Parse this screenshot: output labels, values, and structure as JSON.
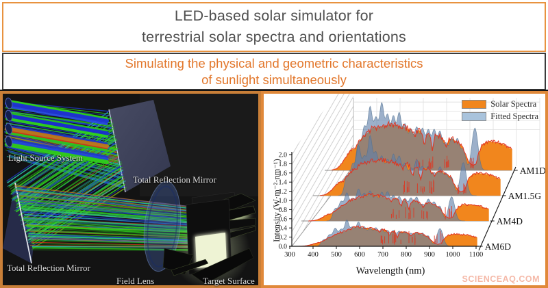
{
  "banners": {
    "title_line1": "LED-based solar simulator for",
    "title_line2": "terrestrial solar spectra and orientations",
    "subtitle_line1": "Simulating the physical and geometric characteristics",
    "subtitle_line2": "of sunlight simultaneously"
  },
  "colors": {
    "title_text": "#4f4f4f",
    "subtitle_text": "#e2762a",
    "banner1_border": "#e8923f",
    "banner2_border": "#3b3b3b",
    "panel_border_left": "#c97f38",
    "panel_border_right": "#e0893a",
    "solar_fill": "#f1861d",
    "fitted_overlay": "rgba(95,127,169,0.62)",
    "fitted_swatch": "#a9c3dc",
    "red_line": "#e0341f",
    "ray_green": "#2fd41c",
    "ray_blue": "#2140e0",
    "ray_teal": "#2cc4ae",
    "ray_orange": "#c0761c",
    "ray_red": "#d03418",
    "mirror_fill": "#3f4258",
    "watermark_color": "#f5b9a8"
  },
  "ray_diagram": {
    "labels": {
      "light_source": "Light Source System",
      "mirror_top": "Total Reflection Mirror",
      "mirror_bottom": "Total Reflection Mirror",
      "field_lens": "Field Lens",
      "target_surface": "Target Surface"
    }
  },
  "chart_data": {
    "type": "area",
    "projection": "3d-waterfall",
    "title": "",
    "xlabel": "Wavelength (nm)",
    "ylabel": "Intensity (W·m⁻²·nm⁻¹)",
    "x_ticks": [
      300,
      400,
      500,
      600,
      700,
      800,
      900,
      1000,
      1100
    ],
    "y_ticks": [
      0.0,
      0.2,
      0.4,
      0.6,
      0.8,
      1.0,
      1.2,
      1.4,
      1.6,
      1.8,
      2.0
    ],
    "xlim": [
      300,
      1105
    ],
    "ylim": [
      0,
      2.0
    ],
    "grid": true,
    "legend_position": "top-right",
    "legend": [
      {
        "label": "Solar Spectra",
        "color": "#f1861d"
      },
      {
        "label": "Fitted Spectra",
        "color": "#a9c3dc"
      }
    ],
    "series": [
      {
        "name": "AM1D",
        "peak_intensity": 1.05,
        "blue_shift": 0.35
      },
      {
        "name": "AM1.5G",
        "peak_intensity": 0.82,
        "blue_shift": 0.5
      },
      {
        "name": "AM4D",
        "peak_intensity": 0.6,
        "blue_shift": 0.9
      },
      {
        "name": "AM6D",
        "peak_intensity": 0.44,
        "blue_shift": 1.3
      }
    ],
    "solar_envelope_normalized": [
      [
        300,
        0
      ],
      [
        330,
        0.02
      ],
      [
        350,
        0.07
      ],
      [
        365,
        0.18
      ],
      [
        380,
        0.32
      ],
      [
        400,
        0.52
      ],
      [
        415,
        0.62
      ],
      [
        430,
        0.6
      ],
      [
        445,
        0.74
      ],
      [
        460,
        0.85
      ],
      [
        475,
        0.9
      ],
      [
        490,
        0.93
      ],
      [
        505,
        1.0
      ],
      [
        520,
        0.98
      ],
      [
        535,
        0.95
      ],
      [
        550,
        0.97
      ],
      [
        565,
        0.95
      ],
      [
        580,
        0.96
      ],
      [
        600,
        0.94
      ],
      [
        620,
        0.92
      ],
      [
        640,
        0.9
      ],
      [
        655,
        0.87
      ],
      [
        670,
        0.83
      ],
      [
        687,
        0.72
      ],
      [
        695,
        0.8
      ],
      [
        705,
        0.84
      ],
      [
        715,
        0.8
      ],
      [
        728,
        0.52
      ],
      [
        738,
        0.76
      ],
      [
        750,
        0.74
      ],
      [
        762,
        0.42
      ],
      [
        772,
        0.72
      ],
      [
        785,
        0.73
      ],
      [
        800,
        0.7
      ],
      [
        812,
        0.6
      ],
      [
        822,
        0.52
      ],
      [
        835,
        0.65
      ],
      [
        850,
        0.66
      ],
      [
        862,
        0.6
      ],
      [
        875,
        0.58
      ],
      [
        890,
        0.5
      ],
      [
        905,
        0.32
      ],
      [
        920,
        0.16
      ],
      [
        935,
        0.1
      ],
      [
        950,
        0.14
      ],
      [
        962,
        0.36
      ],
      [
        975,
        0.52
      ],
      [
        990,
        0.58
      ],
      [
        1010,
        0.6
      ],
      [
        1035,
        0.58
      ],
      [
        1060,
        0.56
      ],
      [
        1080,
        0.5
      ],
      [
        1095,
        0.46
      ],
      [
        1105,
        0.44
      ]
    ],
    "led_centers_nm": [
      445,
      470,
      495,
      520,
      545,
      570,
      595,
      620,
      645,
      670,
      695,
      720,
      745,
      770,
      795,
      820,
      845,
      870,
      895,
      945
    ]
  },
  "watermark": "SCIENCEAQ.COM"
}
